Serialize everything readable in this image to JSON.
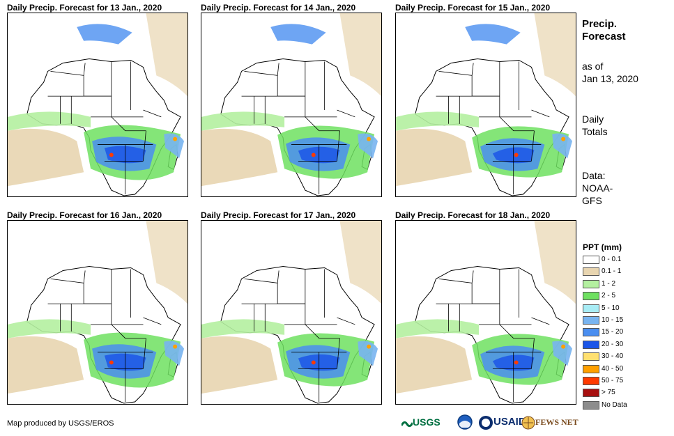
{
  "panels": [
    {
      "title": "Daily Precip. Forecast for 13 Jan., 2020"
    },
    {
      "title": "Daily Precip. Forecast for 14 Jan., 2020"
    },
    {
      "title": "Daily Precip. Forecast for 15 Jan., 2020"
    },
    {
      "title": "Daily Precip. Forecast for 16 Jan., 2020"
    },
    {
      "title": "Daily Precip. Forecast for 17 Jan., 2020"
    },
    {
      "title": "Daily Precip. Forecast for 18 Jan., 2020"
    }
  ],
  "side": {
    "title_line1": "Precip.",
    "title_line2": "Forecast",
    "asof_line1": "as of",
    "asof_line2": "Jan 13, 2020",
    "totals_line1": "Daily",
    "totals_line2": "Totals",
    "data_line1": "Data:",
    "data_line2": "NOAA-",
    "data_line3": "GFS"
  },
  "legend": {
    "title": "PPT (mm)",
    "items": [
      {
        "label": "0 - 0.1",
        "color": "#ffffff"
      },
      {
        "label": "0.1 - 1",
        "color": "#e8d5b0"
      },
      {
        "label": "1 - 2",
        "color": "#b4f0a0"
      },
      {
        "label": "2 - 5",
        "color": "#6ee060"
      },
      {
        "label": "5 - 10",
        "color": "#a8ecf5"
      },
      {
        "label": "10 - 15",
        "color": "#78b4f0"
      },
      {
        "label": "15 - 20",
        "color": "#4a8ef0"
      },
      {
        "label": "20 - 30",
        "color": "#1c56e8"
      },
      {
        "label": "30 - 40",
        "color": "#ffe070"
      },
      {
        "label": "40 - 50",
        "color": "#ffa000"
      },
      {
        "label": "50 - 75",
        "color": "#ff3a00"
      },
      {
        "label": "> 75",
        "color": "#a81010"
      },
      {
        "label": "No Data",
        "color": "#8c8c8c"
      }
    ]
  },
  "credit": "Map produced by USGS/EROS",
  "logos": {
    "usgs": "USGS",
    "noaa": "NOAA",
    "usaid": "USAID",
    "fewsnet": "FEWS NET"
  }
}
